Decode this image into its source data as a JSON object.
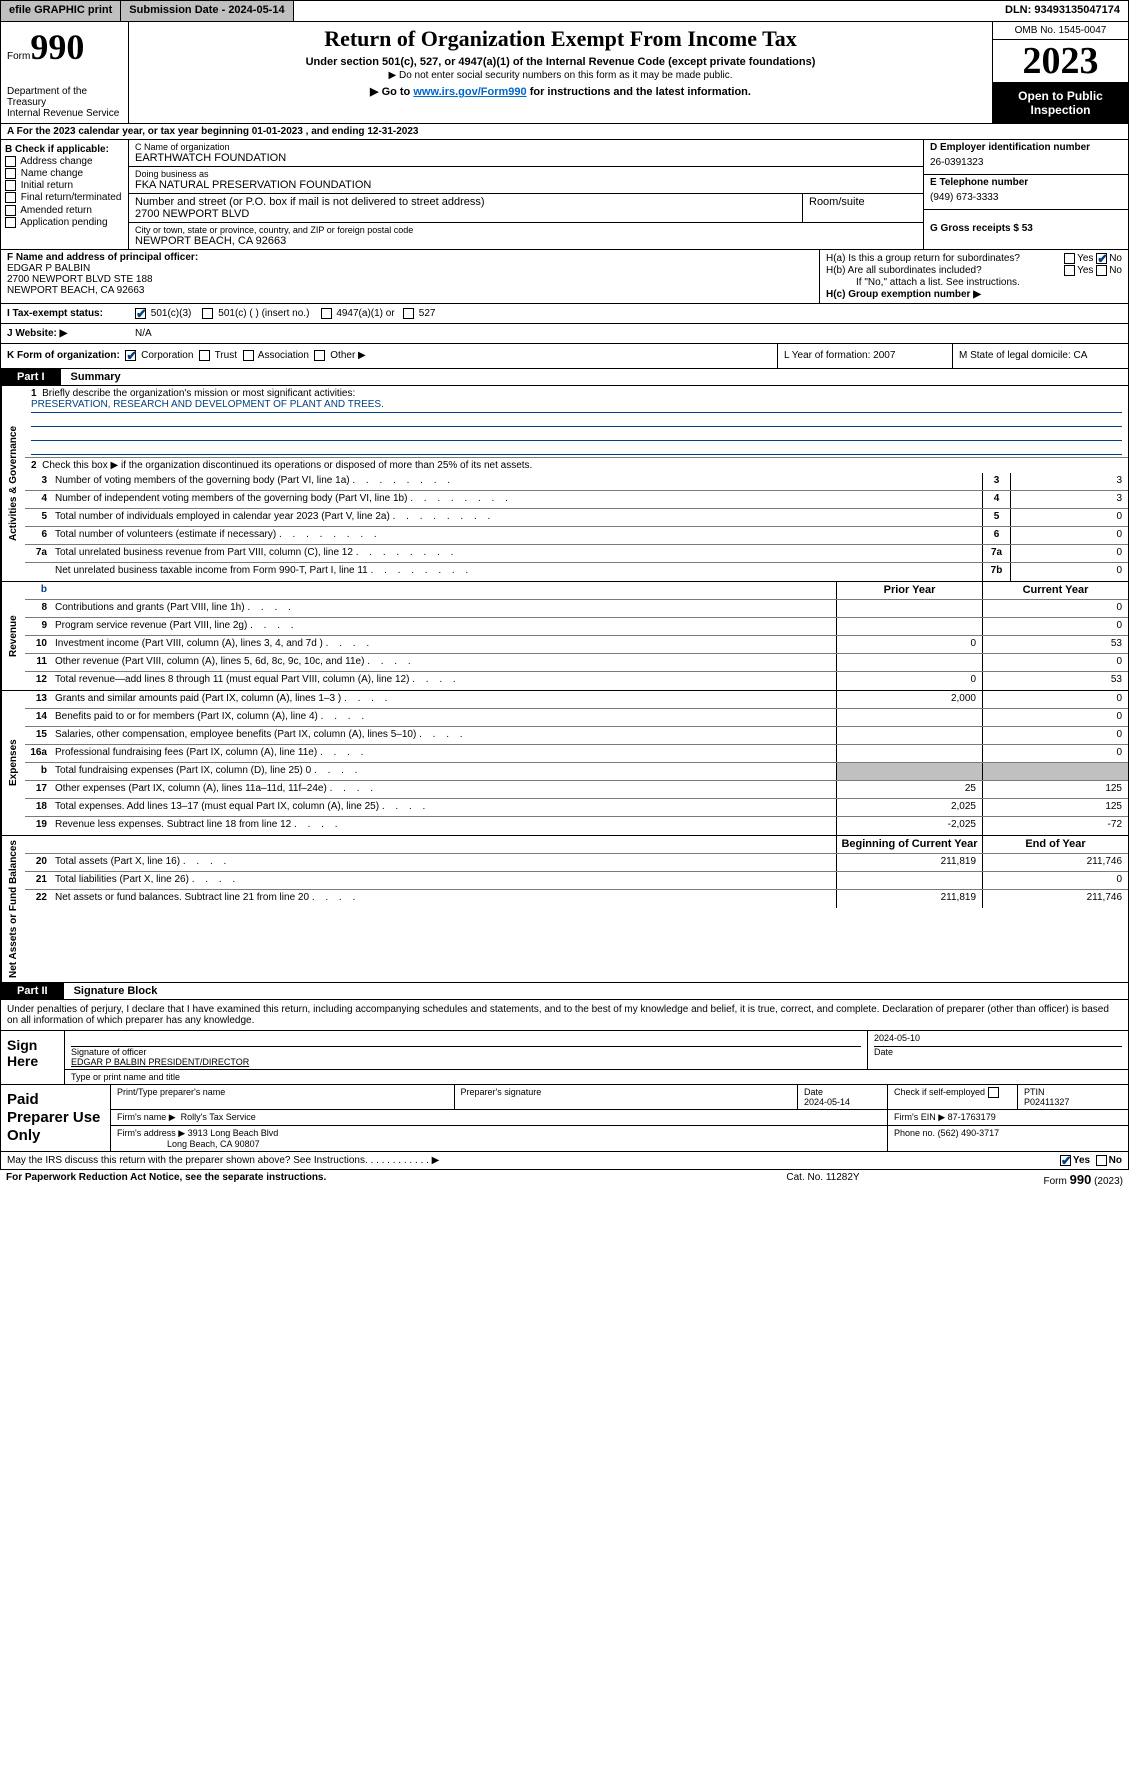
{
  "topbar": {
    "efile_label": "efile GRAPHIC print",
    "subdate_label": "Submission Date - 2024-05-14",
    "dln_label": "DLN: 93493135047174"
  },
  "header": {
    "form_prefix": "Form",
    "form_number": "990",
    "dept": "Department of the Treasury\nInternal Revenue Service",
    "title": "Return of Organization Exempt From Income Tax",
    "sub1": "Under section 501(c), 527, or 4947(a)(1) of the Internal Revenue Code (except private foundations)",
    "sub2": "Do not enter social security numbers on this form as it may be made public.",
    "goto_pre": "▶ Go to ",
    "goto_link": "www.irs.gov/Form990",
    "goto_post": " for instructions and the latest information.",
    "omb": "OMB No. 1545-0047",
    "year": "2023",
    "open": "Open to Public Inspection"
  },
  "lineA": "A For the 2023 calendar year, or tax year beginning 01-01-2023    , and ending 12-31-2023",
  "boxB": {
    "label": "B Check if applicable:",
    "opts": [
      "Address change",
      "Name change",
      "Initial return",
      "Final return/terminated",
      "Amended return",
      "Application pending"
    ]
  },
  "boxC": {
    "name_lbl": "C Name of organization",
    "name": "EARTHWATCH FOUNDATION",
    "dba_lbl": "Doing business as",
    "dba": "FKA NATURAL PRESERVATION FOUNDATION",
    "street_lbl": "Number and street (or P.O. box if mail is not delivered to street address)",
    "street": "2700 NEWPORT BLVD",
    "room_lbl": "Room/suite",
    "city_lbl": "City or town, state or province, country, and ZIP or foreign postal code",
    "city": "NEWPORT BEACH, CA   92663"
  },
  "boxD": {
    "ein_lbl": "D Employer identification number",
    "ein": "26-0391323",
    "tel_lbl": "E Telephone number",
    "tel": "(949) 673-3333",
    "gross_lbl": "G Gross receipts $ 53"
  },
  "boxF": {
    "lbl": "F  Name and address of principal officer:",
    "line1": "EDGAR P BALBIN",
    "line2": "2700 NEWPORT BLVD STE 188",
    "line3": "NEWPORT BEACH, CA  92663"
  },
  "boxH": {
    "a_lbl": "H(a)  Is this a group return for subordinates?",
    "b_lbl": "H(b)  Are all subordinates included?",
    "b_note": "If \"No,\" attach a list. See instructions.",
    "c_lbl": "H(c)  Group exemption number ▶"
  },
  "boxI": {
    "lbl": "I    Tax-exempt status:",
    "o1": "501(c)(3)",
    "o2": "501(c) (  ) (insert no.)",
    "o3": "4947(a)(1) or",
    "o4": "527"
  },
  "boxJ": {
    "lbl": "J    Website:  ▶",
    "val": "N/A"
  },
  "boxK": {
    "lbl": "K Form of organization:",
    "o1": "Corporation",
    "o2": "Trust",
    "o3": "Association",
    "o4": "Other ▶"
  },
  "boxL": {
    "txt": "L Year of formation: 2007"
  },
  "boxM": {
    "txt": "M State of legal domicile: CA"
  },
  "part1": {
    "hdr_num": "Part I",
    "hdr_title": "Summary",
    "mission_lbl": "Briefly describe the organization's mission or most significant activities:",
    "mission": "PRESERVATION, RESEARCH AND DEVELOPMENT OF PLANT AND TREES.",
    "line2": "Check this box ▶       if the organization discontinued its operations or disposed of more than 25% of its net assets.",
    "sections": {
      "gov": "Activities & Governance",
      "rev": "Revenue",
      "exp": "Expenses",
      "net": "Net Assets or Fund Balances"
    },
    "col_prior": "Prior Year",
    "col_curr": "Current Year",
    "col_begin": "Beginning of Current Year",
    "col_end": "End of Year",
    "rows_gov": [
      {
        "n": "3",
        "d": "Number of voting members of the governing body (Part VI, line 1a)",
        "c": "3",
        "v": "3"
      },
      {
        "n": "4",
        "d": "Number of independent voting members of the governing body (Part VI, line 1b)",
        "c": "4",
        "v": "3"
      },
      {
        "n": "5",
        "d": "Total number of individuals employed in calendar year 2023 (Part V, line 2a)",
        "c": "5",
        "v": "0"
      },
      {
        "n": "6",
        "d": "Total number of volunteers (estimate if necessary)",
        "c": "6",
        "v": "0"
      },
      {
        "n": "7a",
        "d": "Total unrelated business revenue from Part VIII, column (C), line 12",
        "c": "7a",
        "v": "0"
      },
      {
        "n": "",
        "d": "Net unrelated business taxable income from Form 990-T, Part I, line 11",
        "c": "7b",
        "v": "0"
      }
    ],
    "rows_rev": [
      {
        "n": "8",
        "d": "Contributions and grants (Part VIII, line 1h)",
        "p": "",
        "c": "0"
      },
      {
        "n": "9",
        "d": "Program service revenue (Part VIII, line 2g)",
        "p": "",
        "c": "0"
      },
      {
        "n": "10",
        "d": "Investment income (Part VIII, column (A), lines 3, 4, and 7d )",
        "p": "0",
        "c": "53"
      },
      {
        "n": "11",
        "d": "Other revenue (Part VIII, column (A), lines 5, 6d, 8c, 9c, 10c, and 11e)",
        "p": "",
        "c": "0"
      },
      {
        "n": "12",
        "d": "Total revenue—add lines 8 through 11 (must equal Part VIII, column (A), line 12)",
        "p": "0",
        "c": "53"
      }
    ],
    "rows_exp": [
      {
        "n": "13",
        "d": "Grants and similar amounts paid (Part IX, column (A), lines 1–3 )",
        "p": "2,000",
        "c": "0"
      },
      {
        "n": "14",
        "d": "Benefits paid to or for members (Part IX, column (A), line 4)",
        "p": "",
        "c": "0"
      },
      {
        "n": "15",
        "d": "Salaries, other compensation, employee benefits (Part IX, column (A), lines 5–10)",
        "p": "",
        "c": "0"
      },
      {
        "n": "16a",
        "d": "Professional fundraising fees (Part IX, column (A), line 11e)",
        "p": "",
        "c": "0"
      },
      {
        "n": "b",
        "d": "Total fundraising expenses (Part IX, column (D), line 25) 0",
        "p": "GREY",
        "c": "GREY"
      },
      {
        "n": "17",
        "d": "Other expenses (Part IX, column (A), lines 11a–11d, 11f–24e)",
        "p": "25",
        "c": "125"
      },
      {
        "n": "18",
        "d": "Total expenses. Add lines 13–17 (must equal Part IX, column (A), line 25)",
        "p": "2,025",
        "c": "125"
      },
      {
        "n": "19",
        "d": "Revenue less expenses. Subtract line 18 from line 12",
        "p": "-2,025",
        "c": "-72"
      }
    ],
    "rows_net": [
      {
        "n": "20",
        "d": "Total assets (Part X, line 16)",
        "p": "211,819",
        "c": "211,746"
      },
      {
        "n": "21",
        "d": "Total liabilities (Part X, line 26)",
        "p": "",
        "c": "0"
      },
      {
        "n": "22",
        "d": "Net assets or fund balances. Subtract line 21 from line 20",
        "p": "211,819",
        "c": "211,746"
      }
    ]
  },
  "part2": {
    "hdr_num": "Part II",
    "hdr_title": "Signature Block",
    "decl": "Under penalties of perjury, I declare that I have examined this return, including accompanying schedules and statements, and to the best of my knowledge and belief, it is true, correct, and complete. Declaration of preparer (other than officer) is based on all information of which preparer has any knowledge.",
    "sign_here": "Sign Here",
    "sig_of_officer": "Signature of officer",
    "sig_name": "EDGAR P BALBIN PRESIDENT/DIRECTOR",
    "sig_type_lbl": "Type or print name and title",
    "sig_date_lbl": "Date",
    "sig_date": "2024-05-10",
    "paid_lbl": "Paid Preparer Use Only",
    "prep_name_lbl": "Print/Type preparer's name",
    "prep_sig_lbl": "Preparer's signature",
    "prep_date_lbl": "Date",
    "prep_date": "2024-05-14",
    "prep_self_lbl": "Check         if self-employed",
    "ptin_lbl": "PTIN",
    "ptin": "P02411327",
    "firm_name_lbl": "Firm's name      ▶",
    "firm_name": "Rolly's Tax Service",
    "firm_ein_lbl": "Firm's EIN ▶",
    "firm_ein": "87-1763179",
    "firm_addr_lbl": "Firm's address ▶",
    "firm_addr1": "3913 Long Beach Blvd",
    "firm_addr2": "Long Beach, CA   90807",
    "phone_lbl": "Phone no.",
    "phone": "(562) 490-3717"
  },
  "discuss": {
    "q": "May the IRS discuss this return with the preparer shown above? See Instructions.",
    "yes": "Yes",
    "no": "No"
  },
  "footer": {
    "l": "For Paperwork Reduction Act Notice, see the separate instructions.",
    "c": "Cat. No. 11282Y",
    "r_pre": "Form ",
    "r_form": "990",
    "r_post": " (2023)"
  }
}
